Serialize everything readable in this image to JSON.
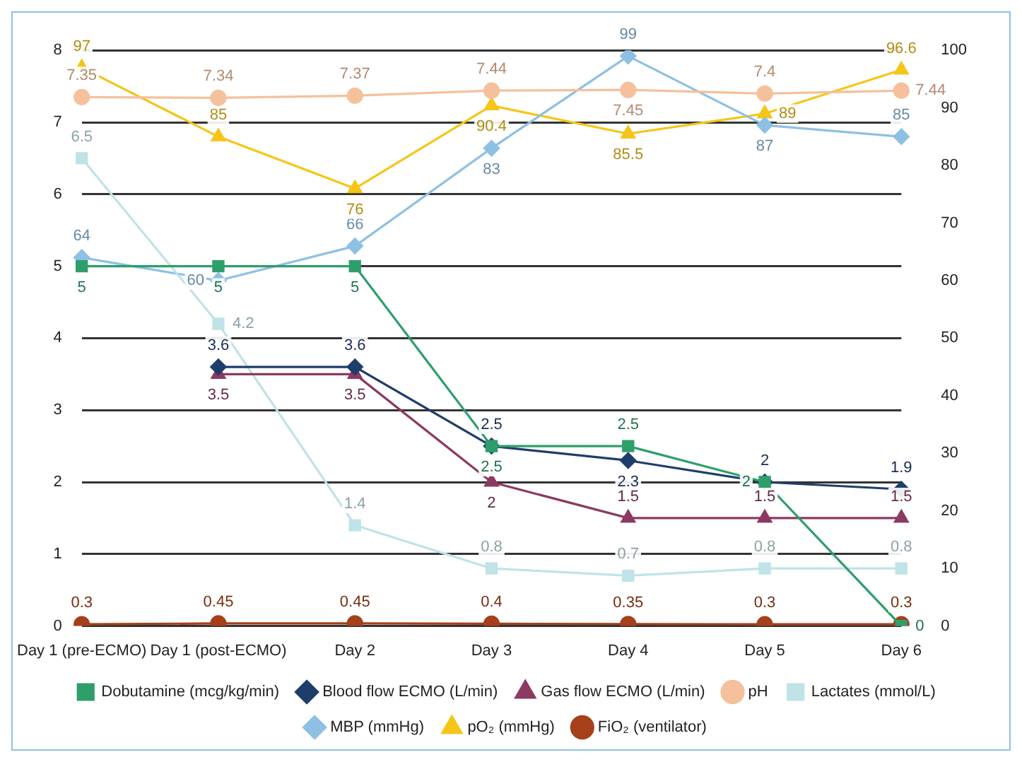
{
  "chart_data": {
    "type": "line",
    "categories": [
      "Day 1 (pre-ECMO)",
      "Day 1 (post-ECMO)",
      "Day 2",
      "Day 3",
      "Day 4",
      "Day 5",
      "Day 6"
    ],
    "series": [
      {
        "name": "Dobutamine (mcg/kg/min)",
        "color": "#2e9e6b",
        "marker": "square",
        "values": [
          5,
          5,
          5,
          2.5,
          2.5,
          2,
          0
        ]
      },
      {
        "name": "Blood flow ECMO (L/min)",
        "color": "#1f3d6b",
        "marker": "diamond",
        "values": [
          null,
          3.6,
          3.6,
          2.5,
          2.3,
          2,
          1.9
        ]
      },
      {
        "name": "Gas flow ECMO (L/min)",
        "color": "#8b3a62",
        "marker": "triangle",
        "values": [
          null,
          3.5,
          3.5,
          2,
          1.5,
          1.5,
          1.5
        ]
      },
      {
        "name": "pH",
        "color": "#f5c09c",
        "marker": "circle",
        "values": [
          7.35,
          7.34,
          7.37,
          7.44,
          7.45,
          7.4,
          7.44
        ]
      },
      {
        "name": "Lactates (mmol/L)",
        "color": "#bfe3e6",
        "marker": "square",
        "values": [
          6.5,
          4.2,
          1.4,
          0.8,
          0.7,
          0.8,
          0.8
        ]
      },
      {
        "name": "MBP (mmHg)",
        "color": "#8ec0e4",
        "marker": "diamond",
        "axis": "y2",
        "values": [
          64,
          60,
          66,
          83,
          99,
          87,
          85
        ]
      },
      {
        "name": "pO₂ (mmHg)",
        "color": "#f5c518",
        "marker": "triangle",
        "axis": "y2",
        "values": [
          97,
          85,
          76,
          90.4,
          85.5,
          89,
          96.6
        ]
      },
      {
        "name": "FiO₂ (ventilator)",
        "color": "#a5401b",
        "marker": "circle",
        "axis": "y2",
        "values": [
          0.3,
          0.45,
          0.45,
          0.4,
          0.35,
          0.3,
          0.3
        ]
      }
    ],
    "ylim": [
      0,
      8
    ],
    "yticks": [
      0,
      1,
      2,
      3,
      4,
      5,
      6,
      7,
      8
    ],
    "y2lim": [
      0,
      100
    ],
    "y2ticks": [
      0,
      10,
      20,
      30,
      40,
      50,
      60,
      70,
      80,
      90,
      100
    ],
    "grid": "y",
    "legend": "bottom",
    "data_labels": true
  }
}
